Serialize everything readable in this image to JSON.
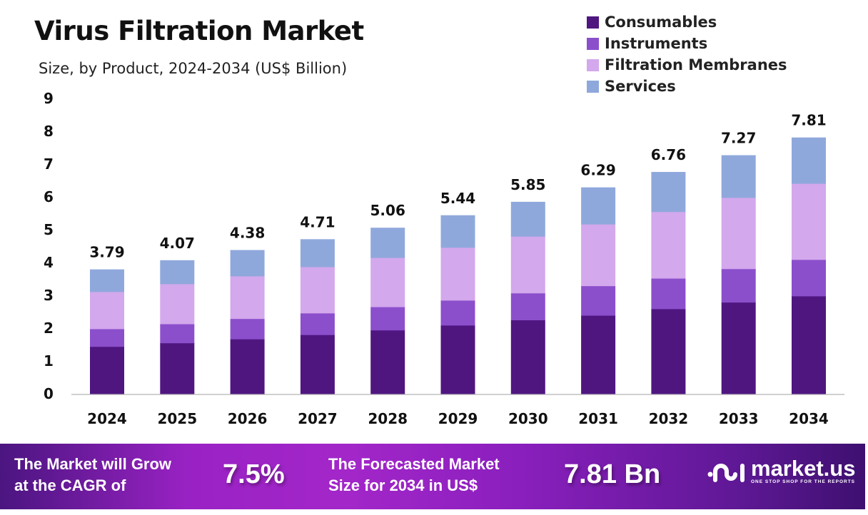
{
  "chart_data": {
    "type": "stacked-bar",
    "title": "Virus Filtration Market",
    "subtitle": "Size, by Product, 2024-2034 (US$ Billion)",
    "xlabel": "",
    "ylabel": "",
    "ylim": [
      0,
      9
    ],
    "yticks": [
      "0",
      "1",
      "2",
      "3",
      "4",
      "5",
      "6",
      "7",
      "8",
      "9"
    ],
    "grid": false,
    "legend_position": "top-right",
    "categories": [
      "2024",
      "2025",
      "2026",
      "2027",
      "2028",
      "2029",
      "2030",
      "2031",
      "2032",
      "2033",
      "2034"
    ],
    "series": [
      {
        "name": "Consumables",
        "color": "#4f1680",
        "values": [
          1.44,
          1.55,
          1.67,
          1.8,
          1.94,
          2.09,
          2.25,
          2.39,
          2.59,
          2.79,
          2.98
        ]
      },
      {
        "name": "Instruments",
        "color": "#8b4fcc",
        "values": [
          0.54,
          0.58,
          0.62,
          0.66,
          0.71,
          0.76,
          0.82,
          0.9,
          0.93,
          1.02,
          1.11
        ]
      },
      {
        "name": "Filtration Membranes",
        "color": "#d3a8ec",
        "values": [
          1.13,
          1.22,
          1.3,
          1.41,
          1.5,
          1.61,
          1.73,
          1.88,
          2.03,
          2.17,
          2.32
        ]
      },
      {
        "name": "Services",
        "color": "#8fa8dc",
        "values": [
          0.68,
          0.72,
          0.79,
          0.84,
          0.91,
          0.98,
          1.05,
          1.12,
          1.21,
          1.29,
          1.4
        ]
      }
    ],
    "totals": [
      "3.79",
      "4.07",
      "4.38",
      "4.71",
      "5.06",
      "5.44",
      "5.85",
      "6.29",
      "6.76",
      "7.27",
      "7.81"
    ]
  },
  "banner": {
    "cagr_text_line1": "The Market will Grow",
    "cagr_text_line2": "at the CAGR of",
    "cagr_value": "7.5%",
    "forecast_text_line1": "The Forecasted Market",
    "forecast_text_line2": "Size for 2034 in US$",
    "forecast_value": "7.81 Bn",
    "logo_name": "market.us",
    "logo_tagline": "ONE STOP SHOP FOR THE REPORTS"
  }
}
